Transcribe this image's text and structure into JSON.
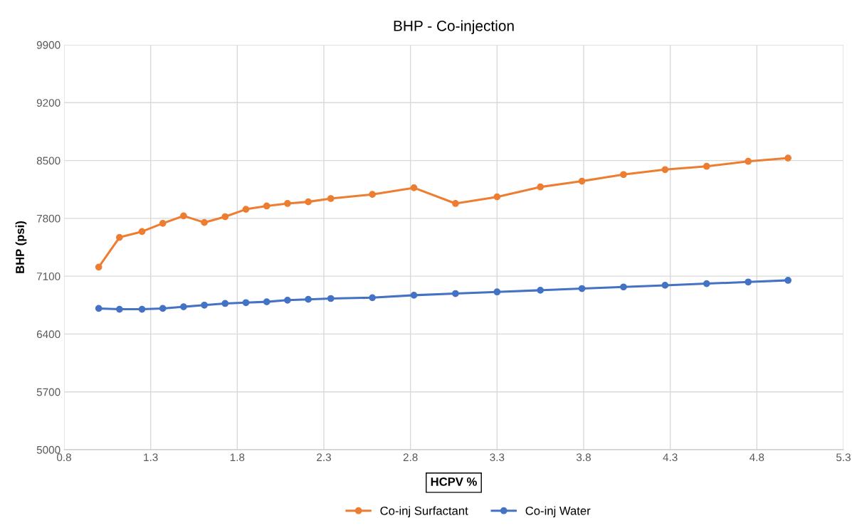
{
  "chart_data": {
    "type": "line",
    "title": "BHP - Co-injection",
    "xlabel": "HCPV %",
    "ylabel": "BHP (psi)",
    "x": [
      1.0,
      1.12,
      1.25,
      1.37,
      1.49,
      1.61,
      1.73,
      1.85,
      1.97,
      2.09,
      2.21,
      2.34,
      2.58,
      2.82,
      3.06,
      3.3,
      3.55,
      3.79,
      4.03,
      4.27,
      4.51,
      4.75,
      4.98
    ],
    "series": [
      {
        "name": "Co-inj Surfactant",
        "color": "#ed7d31",
        "values": [
          7210,
          7570,
          7640,
          7740,
          7830,
          7750,
          7820,
          7910,
          7950,
          7980,
          8000,
          8040,
          8090,
          8170,
          7980,
          8060,
          8180,
          8250,
          8330,
          8390,
          8430,
          8490,
          8530
        ]
      },
      {
        "name": "Co-inj Water",
        "color": "#4472c4",
        "values": [
          6710,
          6700,
          6700,
          6710,
          6730,
          6750,
          6770,
          6780,
          6790,
          6810,
          6820,
          6830,
          6840,
          6870,
          6890,
          6910,
          6930,
          6950,
          6970,
          6990,
          7010,
          7030,
          7050
        ]
      }
    ],
    "xlim": [
      0.8,
      5.3
    ],
    "xticks": [
      {
        "value": 0.8,
        "label": "0.8"
      },
      {
        "value": 1.3,
        "label": "1.3"
      },
      {
        "value": 1.8,
        "label": "1.8"
      },
      {
        "value": 2.3,
        "label": "2.3"
      },
      {
        "value": 2.8,
        "label": "2.8"
      },
      {
        "value": 3.3,
        "label": "3.3"
      },
      {
        "value": 3.8,
        "label": "3.8"
      },
      {
        "value": 4.3,
        "label": "4.3"
      },
      {
        "value": 4.8,
        "label": "4.8"
      },
      {
        "value": 5.3,
        "label": "5.3"
      }
    ],
    "ylim": [
      5000,
      9900
    ],
    "yticks": [
      5000,
      5700,
      6400,
      7100,
      7800,
      8500,
      9200,
      9900
    ],
    "grid": true,
    "legend": "bottom",
    "marker": "circle",
    "line_style": "solid"
  }
}
